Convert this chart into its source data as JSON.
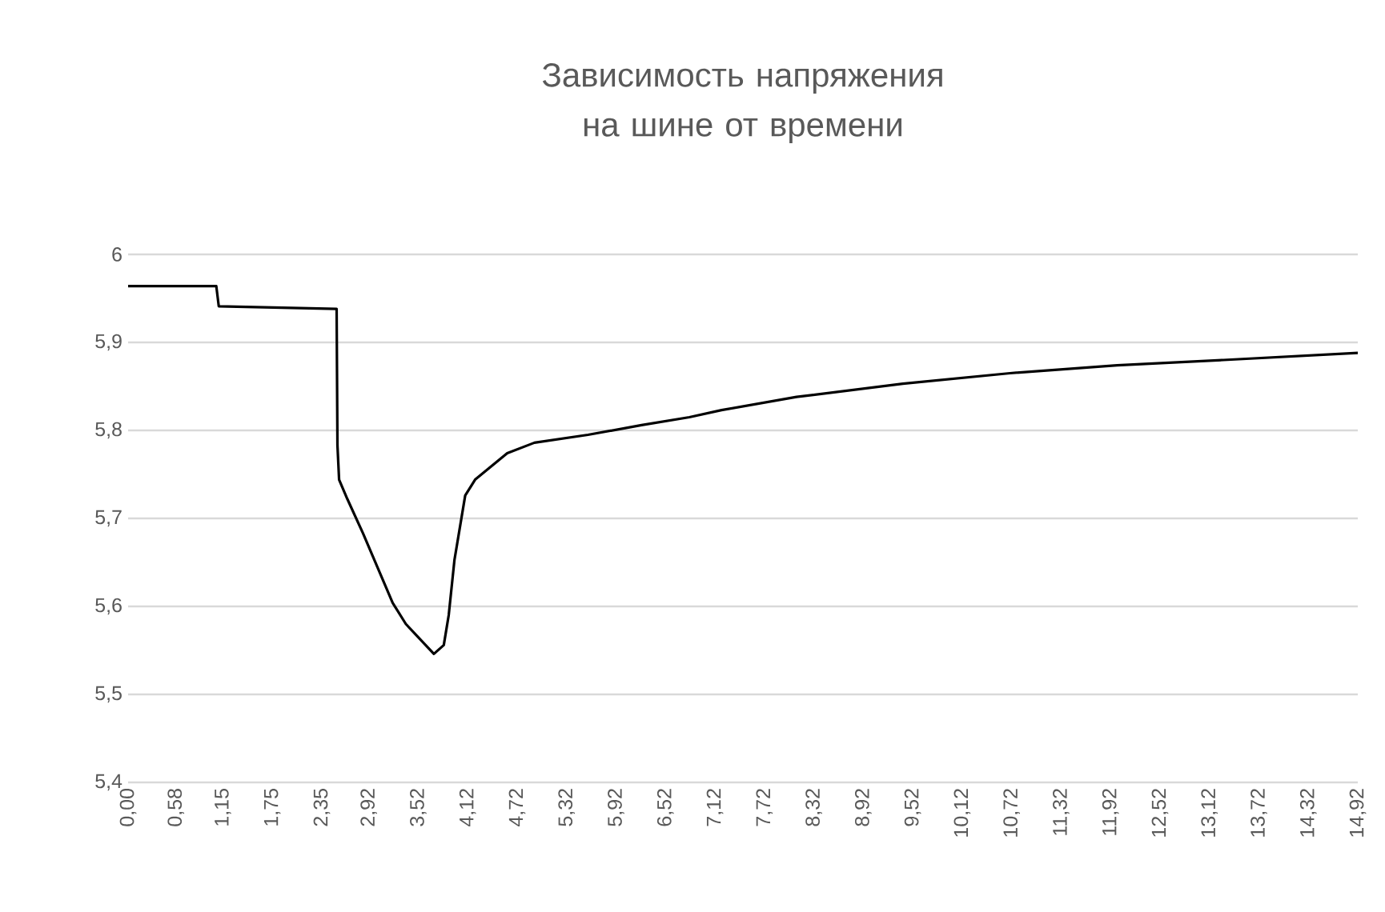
{
  "chart_data": {
    "type": "line",
    "title": "Зависимость напряжения на шине от времени",
    "x": [
      0,
      1.07,
      1.1,
      2.53,
      2.54,
      2.56,
      2.66,
      2.85,
      3.21,
      3.37,
      3.71,
      3.83,
      3.89,
      3.96,
      4.09,
      4.21,
      4.6,
      4.93,
      5.58,
      6.23,
      6.81,
      7.2,
      8.11,
      9.4,
      10.7,
      12.0,
      13.29,
      14.92
    ],
    "series": [
      {
        "color": "#000000",
        "values": [
          5.964,
          5.964,
          5.941,
          5.938,
          5.783,
          5.744,
          5.722,
          5.683,
          5.604,
          5.58,
          5.546,
          5.556,
          5.59,
          5.653,
          5.726,
          5.744,
          5.774,
          5.786,
          5.795,
          5.806,
          5.815,
          5.823,
          5.838,
          5.853,
          5.865,
          5.874,
          5.88,
          5.888
        ]
      }
    ],
    "xlim": [
      0,
      14.92
    ],
    "xticks": [
      {
        "value": 0,
        "label": "0,00"
      },
      {
        "value": 0.58,
        "label": "0,58"
      },
      {
        "value": 1.15,
        "label": "1,15"
      },
      {
        "value": 1.75,
        "label": "1,75"
      },
      {
        "value": 2.35,
        "label": "2,35"
      },
      {
        "value": 2.92,
        "label": "2,92"
      },
      {
        "value": 3.52,
        "label": "3,52"
      },
      {
        "value": 4.12,
        "label": "4,12"
      },
      {
        "value": 4.72,
        "label": "4,72"
      },
      {
        "value": 5.32,
        "label": "5,32"
      },
      {
        "value": 5.92,
        "label": "5,92"
      },
      {
        "value": 6.52,
        "label": "6,52"
      },
      {
        "value": 7.12,
        "label": "7,12"
      },
      {
        "value": 7.72,
        "label": "7,72"
      },
      {
        "value": 8.32,
        "label": "8,32"
      },
      {
        "value": 8.92,
        "label": "8,92"
      },
      {
        "value": 9.52,
        "label": "9,52"
      },
      {
        "value": 10.12,
        "label": "10,12"
      },
      {
        "value": 10.72,
        "label": "10,72"
      },
      {
        "value": 11.32,
        "label": "11,32"
      },
      {
        "value": 11.92,
        "label": "11,92"
      },
      {
        "value": 12.52,
        "label": "12,52"
      },
      {
        "value": 13.12,
        "label": "13,12"
      },
      {
        "value": 13.72,
        "label": "13,72"
      },
      {
        "value": 14.32,
        "label": "14,32"
      },
      {
        "value": 14.92,
        "label": "14,92"
      }
    ],
    "ylim": [
      5.4,
      6
    ],
    "yticks": [
      {
        "value": 5.4,
        "label": "5,4"
      },
      {
        "value": 5.5,
        "label": "5,5"
      },
      {
        "value": 5.6,
        "label": "5,6"
      },
      {
        "value": 5.7,
        "label": "5,7"
      },
      {
        "value": 5.8,
        "label": "5,8"
      },
      {
        "value": 5.9,
        "label": "5,9"
      },
      6
    ],
    "grid": "y",
    "line_style": "solid"
  }
}
